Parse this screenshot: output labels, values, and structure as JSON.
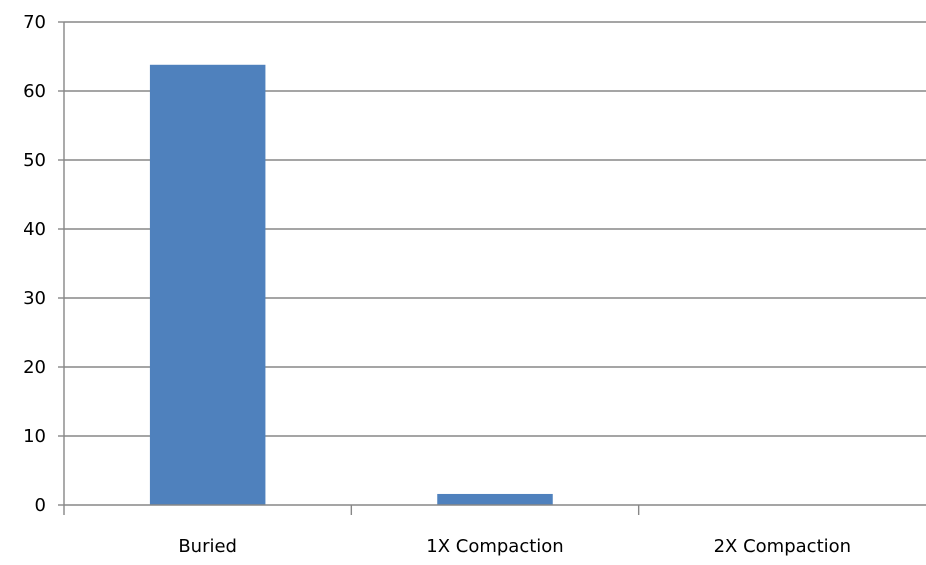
{
  "chart_data": {
    "type": "bar",
    "title": "",
    "xlabel": "",
    "ylabel": "",
    "categories": [
      "Buried",
      "1X Compaction",
      "2X Compaction"
    ],
    "values": [
      63.8,
      1.6,
      0
    ],
    "ylim": [
      0,
      70
    ],
    "yticks": [
      "0",
      "10",
      "20",
      "30",
      "40",
      "50",
      "60",
      "70"
    ],
    "grid": true,
    "legend": "none",
    "bar_color": "#4f81bd",
    "grid_color": "#878787"
  }
}
